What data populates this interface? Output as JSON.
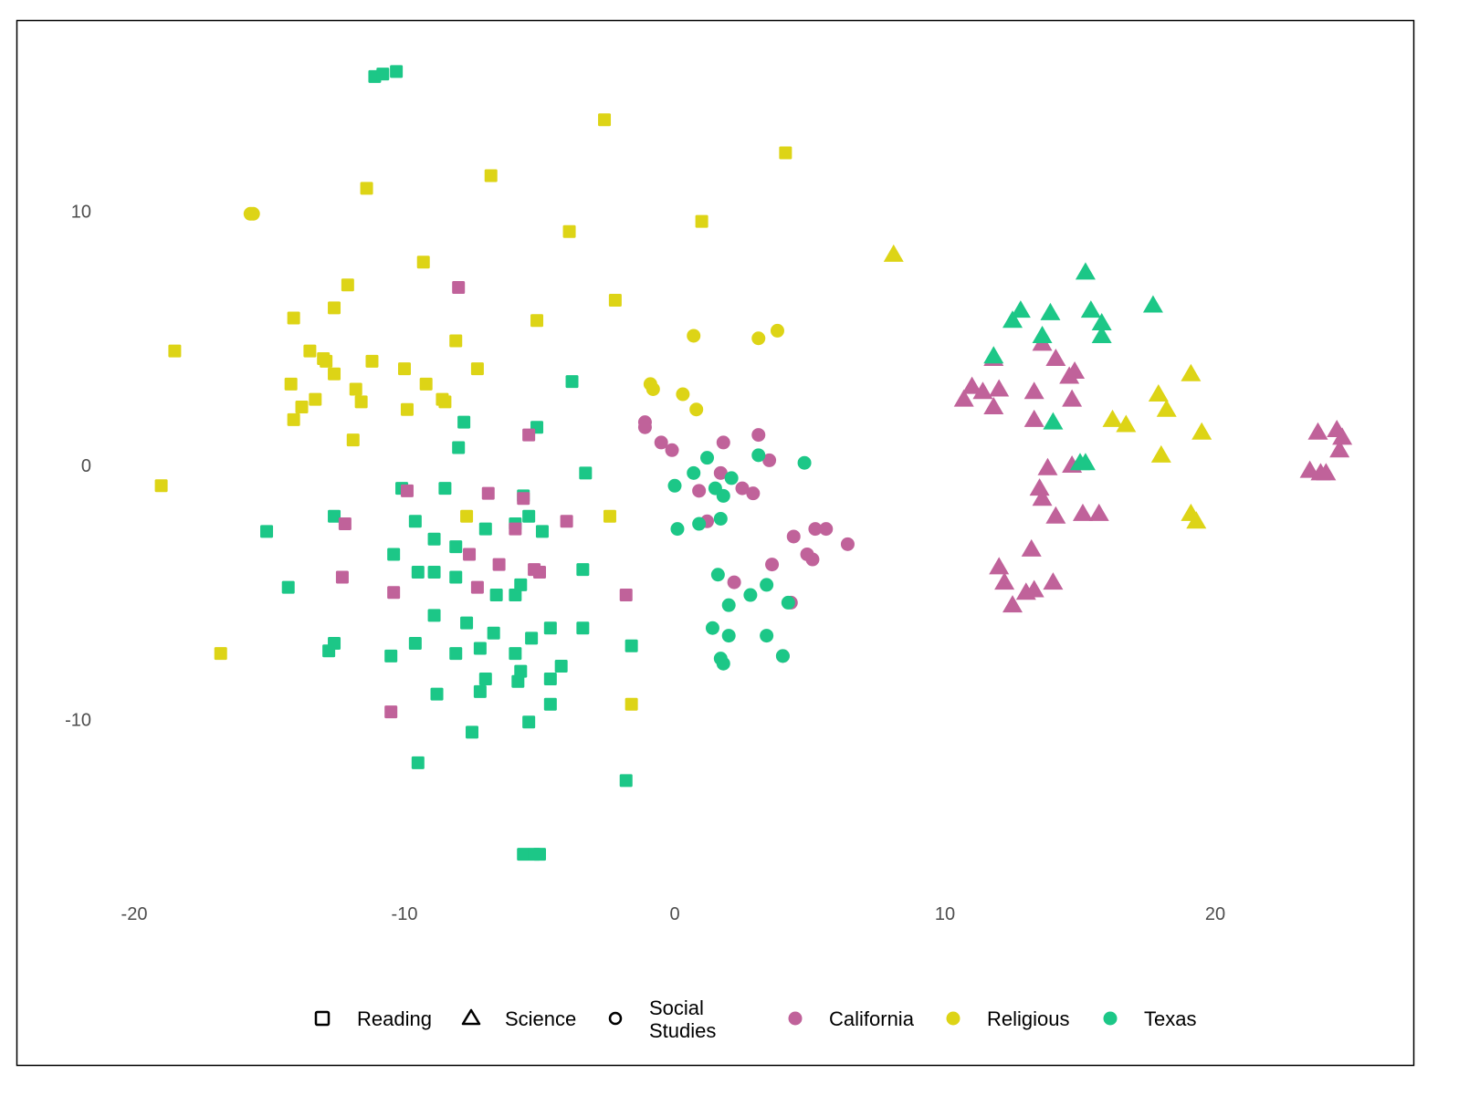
{
  "chart_data": {
    "type": "scatter",
    "title": "",
    "xlabel": "",
    "ylabel": "",
    "xlim": [
      -20.5,
      27
    ],
    "ylim": [
      -16.5,
      17.5
    ],
    "grid": false,
    "x_ticks": [
      "-20",
      "-10",
      "0",
      "10",
      "20"
    ],
    "x_tick_values": [
      -20,
      -10,
      0,
      10,
      20
    ],
    "y_ticks": [
      "10",
      "0",
      "-10"
    ],
    "y_tick_values": [
      10,
      0,
      -10
    ],
    "legend_position": "bottom",
    "shape_legend": [
      {
        "label": "Reading",
        "shape": "square"
      },
      {
        "label": "Science",
        "shape": "triangle"
      },
      {
        "label": "Social Studies",
        "label_lines": [
          "Social",
          "Studies"
        ],
        "shape": "circle"
      }
    ],
    "color_legend": [
      {
        "label": "California",
        "color": "#C0629A"
      },
      {
        "label": "Religious",
        "color": "#DDD416"
      },
      {
        "label": "Texas",
        "color": "#1CC787"
      }
    ],
    "series": [
      {
        "name": "Reading - Texas",
        "shape": "square",
        "color": "#1CC787",
        "points": [
          [
            -11.1,
            15.3
          ],
          [
            -10.8,
            15.4
          ],
          [
            -10.3,
            15.5
          ],
          [
            -3.8,
            3.3
          ],
          [
            -7.8,
            1.7
          ],
          [
            -5.1,
            1.5
          ],
          [
            -8.0,
            0.7
          ],
          [
            -10.1,
            -0.9
          ],
          [
            -8.5,
            -0.9
          ],
          [
            -3.3,
            -0.3
          ],
          [
            -5.6,
            -1.2
          ],
          [
            -12.6,
            -2.0
          ],
          [
            -15.1,
            -2.6
          ],
          [
            -9.6,
            -2.2
          ],
          [
            -7.0,
            -2.5
          ],
          [
            -5.9,
            -2.3
          ],
          [
            -5.4,
            -2.0
          ],
          [
            -4.9,
            -2.6
          ],
          [
            -8.9,
            -2.9
          ],
          [
            -8.1,
            -3.2
          ],
          [
            -10.4,
            -3.5
          ],
          [
            -9.5,
            -4.2
          ],
          [
            -8.9,
            -4.2
          ],
          [
            -8.1,
            -4.4
          ],
          [
            -3.4,
            -4.1
          ],
          [
            -14.3,
            -4.8
          ],
          [
            -6.6,
            -5.1
          ],
          [
            -5.9,
            -5.1
          ],
          [
            -5.7,
            -4.7
          ],
          [
            -8.9,
            -5.9
          ],
          [
            -7.7,
            -6.2
          ],
          [
            -6.7,
            -6.6
          ],
          [
            -5.3,
            -6.8
          ],
          [
            -4.6,
            -6.4
          ],
          [
            -3.4,
            -6.4
          ],
          [
            -12.8,
            -7.3
          ],
          [
            -12.6,
            -7.0
          ],
          [
            -10.5,
            -7.5
          ],
          [
            -9.6,
            -7.0
          ],
          [
            -8.1,
            -7.4
          ],
          [
            -7.2,
            -7.2
          ],
          [
            -5.9,
            -7.4
          ],
          [
            -1.6,
            -7.1
          ],
          [
            -7.0,
            -8.4
          ],
          [
            -7.2,
            -8.9
          ],
          [
            -5.7,
            -8.1
          ],
          [
            -5.8,
            -8.5
          ],
          [
            -4.6,
            -8.4
          ],
          [
            -4.2,
            -7.9
          ],
          [
            -8.8,
            -9.0
          ],
          [
            -4.6,
            -9.4
          ],
          [
            -7.5,
            -10.5
          ],
          [
            -5.4,
            -10.1
          ],
          [
            -9.5,
            -11.7
          ],
          [
            -1.8,
            -12.4
          ],
          [
            -5.6,
            -15.3
          ],
          [
            -5.2,
            -15.3
          ],
          [
            -5.0,
            -15.3
          ]
        ]
      },
      {
        "name": "Reading - California",
        "shape": "square",
        "color": "#C0629A",
        "points": [
          [
            -8.0,
            7.0
          ],
          [
            -5.4,
            1.2
          ],
          [
            -9.9,
            -1.0
          ],
          [
            -6.9,
            -1.1
          ],
          [
            -5.6,
            -1.3
          ],
          [
            -12.2,
            -2.3
          ],
          [
            -4.0,
            -2.2
          ],
          [
            -5.9,
            -2.5
          ],
          [
            -7.6,
            -3.5
          ],
          [
            -6.5,
            -3.9
          ],
          [
            -5.2,
            -4.1
          ],
          [
            -5.0,
            -4.2
          ],
          [
            -12.3,
            -4.4
          ],
          [
            -7.3,
            -4.8
          ],
          [
            -10.4,
            -5.0
          ],
          [
            -1.8,
            -5.1
          ],
          [
            -10.5,
            -9.7
          ]
        ]
      },
      {
        "name": "Reading - Religious",
        "shape": "square",
        "color": "#DDD416",
        "points": [
          [
            -2.6,
            13.6
          ],
          [
            4.1,
            12.3
          ],
          [
            -6.8,
            11.4
          ],
          [
            -11.4,
            10.9
          ],
          [
            1.0,
            9.6
          ],
          [
            -3.9,
            9.2
          ],
          [
            -9.3,
            8.0
          ],
          [
            -12.1,
            7.1
          ],
          [
            -2.2,
            6.5
          ],
          [
            -14.1,
            5.8
          ],
          [
            -12.6,
            6.2
          ],
          [
            -5.1,
            5.7
          ],
          [
            -8.1,
            4.9
          ],
          [
            -18.5,
            4.5
          ],
          [
            -13.5,
            4.5
          ],
          [
            -13.0,
            4.2
          ],
          [
            -12.9,
            4.1
          ],
          [
            -12.6,
            3.6
          ],
          [
            -11.2,
            4.1
          ],
          [
            -10.0,
            3.8
          ],
          [
            -7.3,
            3.8
          ],
          [
            -14.2,
            3.2
          ],
          [
            -9.2,
            3.2
          ],
          [
            -11.8,
            3.0
          ],
          [
            -13.3,
            2.6
          ],
          [
            -13.8,
            2.3
          ],
          [
            -11.6,
            2.5
          ],
          [
            -8.6,
            2.6
          ],
          [
            -8.5,
            2.5
          ],
          [
            -9.9,
            2.2
          ],
          [
            -14.1,
            1.8
          ],
          [
            -11.9,
            1.0
          ],
          [
            -19.0,
            -0.8
          ],
          [
            -7.7,
            -2.0
          ],
          [
            -2.4,
            -2.0
          ],
          [
            -16.8,
            -7.4
          ],
          [
            -1.6,
            -9.4
          ]
        ]
      },
      {
        "name": "Social Studies - Religious",
        "shape": "circle",
        "color": "#DDD416",
        "points": [
          [
            -15.7,
            9.9
          ],
          [
            -15.6,
            9.9
          ],
          [
            0.7,
            5.1
          ],
          [
            3.1,
            5.0
          ],
          [
            3.8,
            5.3
          ],
          [
            -0.9,
            3.2
          ],
          [
            -0.8,
            3.0
          ],
          [
            0.3,
            2.8
          ],
          [
            0.8,
            2.2
          ]
        ]
      },
      {
        "name": "Social Studies - California",
        "shape": "circle",
        "color": "#C0629A",
        "points": [
          [
            -1.1,
            1.7
          ],
          [
            -1.1,
            1.5
          ],
          [
            -0.5,
            0.9
          ],
          [
            -0.1,
            0.6
          ],
          [
            1.8,
            0.9
          ],
          [
            3.1,
            1.2
          ],
          [
            3.5,
            0.2
          ],
          [
            1.7,
            -0.3
          ],
          [
            0.9,
            -1.0
          ],
          [
            1.2,
            -2.2
          ],
          [
            2.5,
            -0.9
          ],
          [
            2.9,
            -1.1
          ],
          [
            4.4,
            -2.8
          ],
          [
            5.2,
            -2.5
          ],
          [
            5.6,
            -2.5
          ],
          [
            4.9,
            -3.5
          ],
          [
            5.1,
            -3.7
          ],
          [
            6.4,
            -3.1
          ],
          [
            3.6,
            -3.9
          ],
          [
            2.2,
            -4.6
          ],
          [
            4.3,
            -5.4
          ],
          [
            4.0,
            -7.5
          ]
        ]
      },
      {
        "name": "Social Studies - Texas",
        "shape": "circle",
        "color": "#1CC787",
        "points": [
          [
            1.2,
            0.3
          ],
          [
            3.1,
            0.4
          ],
          [
            4.8,
            0.1
          ],
          [
            0.7,
            -0.3
          ],
          [
            0.0,
            -0.8
          ],
          [
            2.1,
            -0.5
          ],
          [
            1.5,
            -0.9
          ],
          [
            1.8,
            -1.2
          ],
          [
            1.7,
            -2.1
          ],
          [
            0.9,
            -2.3
          ],
          [
            0.1,
            -2.5
          ],
          [
            1.6,
            -4.3
          ],
          [
            3.4,
            -4.7
          ],
          [
            2.8,
            -5.1
          ],
          [
            2.0,
            -5.5
          ],
          [
            4.2,
            -5.4
          ],
          [
            1.4,
            -6.4
          ],
          [
            2.0,
            -6.7
          ],
          [
            3.4,
            -6.7
          ],
          [
            1.7,
            -7.6
          ],
          [
            1.8,
            -7.8
          ],
          [
            4.0,
            -7.5
          ]
        ]
      },
      {
        "name": "Science - Religious",
        "shape": "triangle",
        "color": "#DDD416",
        "points": [
          [
            8.1,
            8.3
          ],
          [
            19.1,
            3.6
          ],
          [
            17.9,
            2.8
          ],
          [
            18.2,
            2.2
          ],
          [
            16.2,
            1.8
          ],
          [
            16.7,
            1.6
          ],
          [
            19.5,
            1.3
          ],
          [
            18.0,
            0.4
          ],
          [
            19.1,
            -1.9
          ],
          [
            19.3,
            -2.2
          ]
        ]
      },
      {
        "name": "Science - California",
        "shape": "triangle",
        "color": "#C0629A",
        "points": [
          [
            13.6,
            4.8
          ],
          [
            11.8,
            4.2
          ],
          [
            14.1,
            4.2
          ],
          [
            14.8,
            3.7
          ],
          [
            14.6,
            3.5
          ],
          [
            10.7,
            2.6
          ],
          [
            11.0,
            3.1
          ],
          [
            11.4,
            2.9
          ],
          [
            12.0,
            3.0
          ],
          [
            13.3,
            2.9
          ],
          [
            11.8,
            2.3
          ],
          [
            14.7,
            2.6
          ],
          [
            13.3,
            1.8
          ],
          [
            13.8,
            -0.1
          ],
          [
            14.7,
            0.0
          ],
          [
            13.5,
            -0.9
          ],
          [
            13.6,
            -1.3
          ],
          [
            14.1,
            -2.0
          ],
          [
            15.1,
            -1.9
          ],
          [
            15.7,
            -1.9
          ],
          [
            13.2,
            -3.3
          ],
          [
            12.0,
            -4.0
          ],
          [
            12.2,
            -4.6
          ],
          [
            13.0,
            -5.0
          ],
          [
            13.3,
            -4.9
          ],
          [
            14.0,
            -4.6
          ],
          [
            12.5,
            -5.5
          ],
          [
            23.8,
            1.3
          ],
          [
            24.5,
            1.4
          ],
          [
            24.7,
            1.1
          ],
          [
            24.6,
            0.6
          ],
          [
            23.5,
            -0.2
          ],
          [
            23.9,
            -0.3
          ],
          [
            24.1,
            -0.3
          ]
        ]
      },
      {
        "name": "Science - Texas",
        "shape": "triangle",
        "color": "#1CC787",
        "points": [
          [
            15.2,
            7.6
          ],
          [
            17.7,
            6.3
          ],
          [
            12.5,
            5.7
          ],
          [
            12.8,
            6.1
          ],
          [
            13.9,
            6.0
          ],
          [
            15.4,
            6.1
          ],
          [
            15.8,
            5.6
          ],
          [
            15.8,
            5.1
          ],
          [
            13.6,
            5.1
          ],
          [
            11.8,
            4.3
          ],
          [
            14.0,
            1.7
          ],
          [
            15.0,
            0.1
          ],
          [
            15.2,
            0.1
          ]
        ]
      }
    ]
  }
}
